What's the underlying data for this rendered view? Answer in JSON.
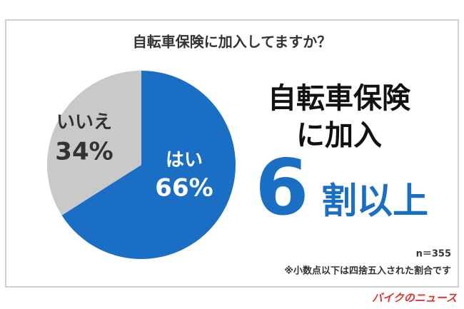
{
  "chart_data": {
    "type": "pie",
    "title": "自転車保険に加入してますか？",
    "categories": [
      "はい",
      "いいえ"
    ],
    "values": [
      66,
      34
    ],
    "value_labels": [
      "66%",
      "34%"
    ],
    "colors": [
      "#1a6fc4",
      "#c9c9c9"
    ],
    "label_colors": [
      "#ffffff",
      "#333333"
    ],
    "headline": [
      "自転車保険",
      "に加入"
    ],
    "highlight_number": "6",
    "highlight_text": "割以上",
    "sample_note": "n＝355",
    "footnote": "※小数点以下は四捨五入された割合です",
    "logo": "バイクのニュース"
  }
}
